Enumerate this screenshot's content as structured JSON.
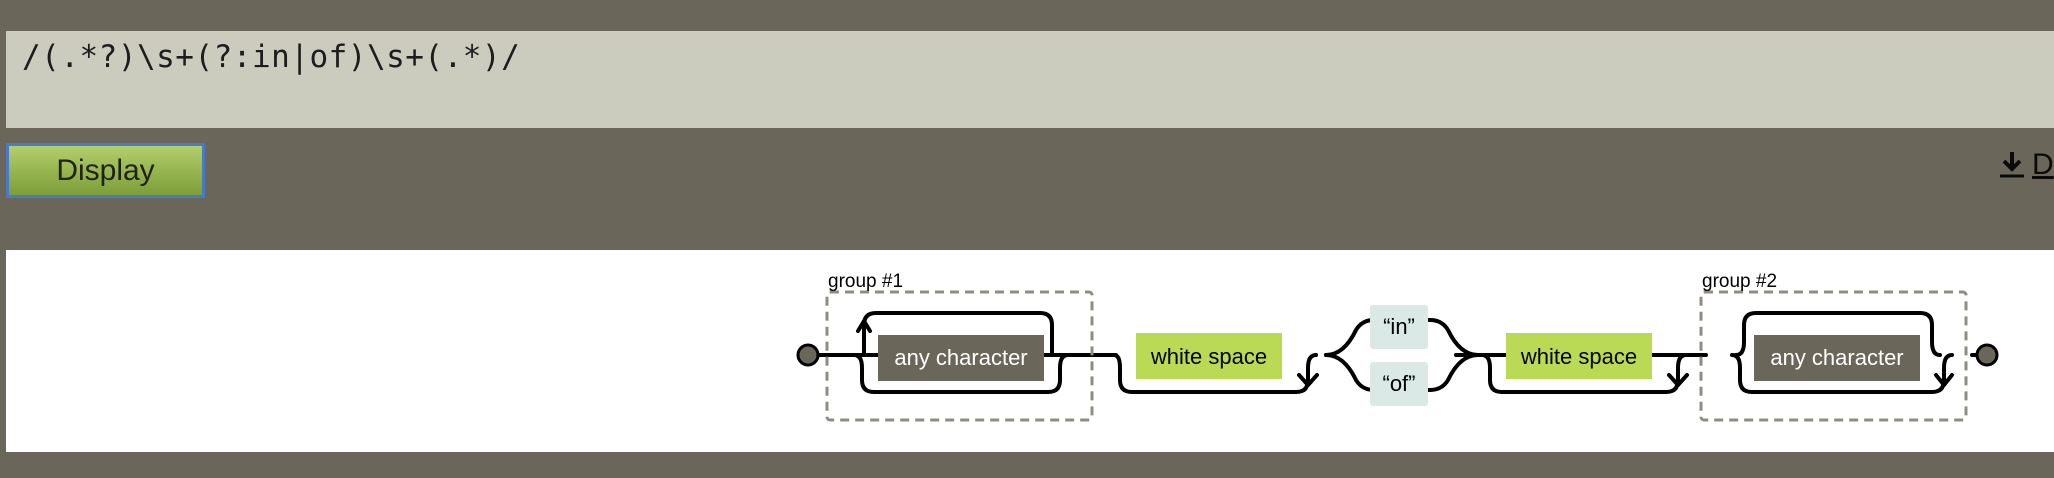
{
  "regex": {
    "expression": "/(.*?)\\s+(?:in|of)\\s+(.*)/"
  },
  "toolbar": {
    "display_label": "Display",
    "download_label": "D"
  },
  "diagram": {
    "group1_label": "group #1",
    "group2_label": "group #2",
    "any_character_1": "any character",
    "white_space_1": "white space",
    "literal_in": "“in”",
    "literal_of": "“of”",
    "white_space_2": "white space",
    "any_character_2": "any character"
  },
  "colors": {
    "background": "#6b665a",
    "regex_bg": "#cbcbbe",
    "any_char_box": "#6b665a",
    "white_space_box": "#bada55",
    "literal_box": "#dae9e5",
    "group_border": "#908c83",
    "button_border": "#4a79c6"
  }
}
